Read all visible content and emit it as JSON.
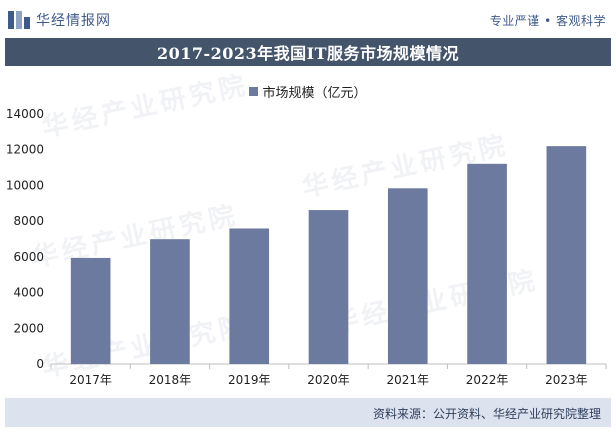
{
  "header": {
    "brand_name": "华经情报网",
    "tagline": "专业严谨 • 客观科学"
  },
  "watermark": {
    "text": "华经产业研究院",
    "url": "www.huaon.com"
  },
  "colors": {
    "bar": "#6b7a9e",
    "title_bg": "#44546a",
    "footer_bg": "#dde3ee",
    "brand": "#3f5a8c"
  },
  "chart_data": {
    "type": "bar",
    "title": "2017-2023年我国IT服务市场规模情况",
    "categories": [
      "2017年",
      "2018年",
      "2019年",
      "2020年",
      "2021年",
      "2022年",
      "2023年"
    ],
    "series": [
      {
        "name": "市场规模（亿元）",
        "values": [
          5940,
          6990,
          7590,
          8620,
          9840,
          11210,
          12200
        ]
      }
    ],
    "ylim": [
      0,
      14000
    ],
    "yticks": [
      0,
      2000,
      4000,
      6000,
      8000,
      10000,
      12000,
      14000
    ],
    "legend_position": "top-center",
    "grid": false
  },
  "footer": {
    "source": "资料来源：公开资料、华经产业研究院整理"
  }
}
